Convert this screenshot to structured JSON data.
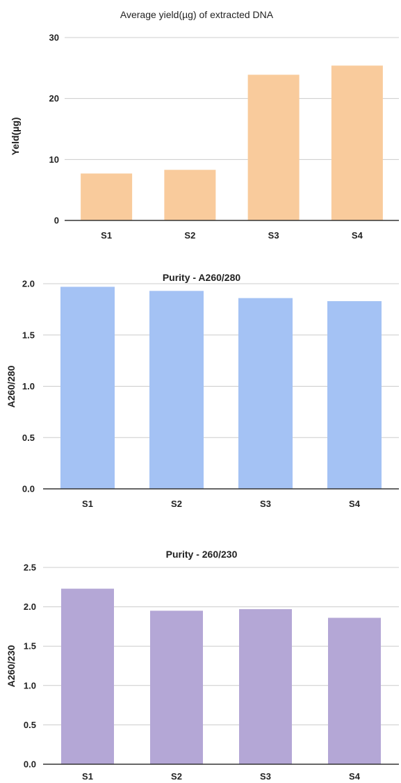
{
  "chart_data": [
    {
      "type": "bar",
      "title": "Average yield(µg) of extracted DNA",
      "xlabel": "",
      "ylabel": "Yeld(µg)",
      "categories": [
        "S1",
        "S2",
        "S3",
        "S4"
      ],
      "values": [
        7.7,
        8.3,
        23.9,
        25.4
      ],
      "ylim": [
        0,
        30
      ],
      "yticks": [
        0,
        10,
        20,
        30
      ],
      "ytick_labels": [
        "0",
        "10",
        "20",
        "30"
      ],
      "grid": true,
      "legend": "none",
      "color": "#f9cb9c"
    },
    {
      "type": "bar",
      "title": "Purity - A260/280",
      "xlabel": "",
      "ylabel": "A260/280",
      "categories": [
        "S1",
        "S2",
        "S3",
        "S4"
      ],
      "values": [
        1.97,
        1.93,
        1.86,
        1.83
      ],
      "ylim": [
        0,
        2.0
      ],
      "yticks": [
        0,
        0.5,
        1.0,
        1.5,
        2.0
      ],
      "ytick_labels": [
        "0.0",
        "0.5",
        "1.0",
        "1.5",
        "2.0"
      ],
      "grid": true,
      "legend": "none",
      "color": "#a4c2f4"
    },
    {
      "type": "bar",
      "title": "Purity - 260/230",
      "xlabel": "",
      "ylabel": "A260/230",
      "categories": [
        "S1",
        "S2",
        "S3",
        "S4"
      ],
      "values": [
        2.23,
        1.95,
        1.97,
        1.86
      ],
      "ylim": [
        0,
        2.5
      ],
      "yticks": [
        0,
        0.5,
        1.0,
        1.5,
        2.0,
        2.5
      ],
      "ytick_labels": [
        "0.0",
        "0.5",
        "1.0",
        "1.5",
        "2.0",
        "2.5"
      ],
      "grid": true,
      "legend": "none",
      "color": "#b4a7d6"
    }
  ]
}
